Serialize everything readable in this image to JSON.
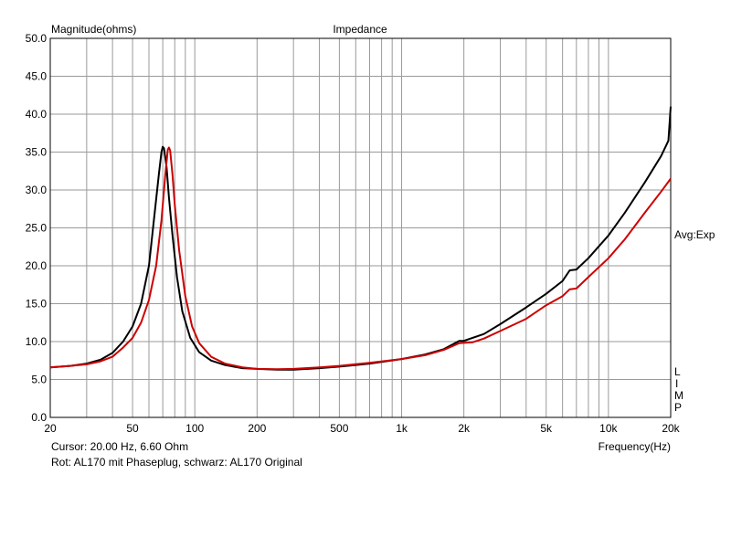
{
  "chart_data": {
    "type": "line",
    "title": "Impedance",
    "ylabel": "Magnitude(ohms)",
    "xlabel": "Frequency(Hz)",
    "x_scale": "log",
    "xlim": [
      20,
      20000
    ],
    "ylim": [
      0,
      50
    ],
    "grid": true,
    "x_ticks": [
      20,
      50,
      100,
      200,
      500,
      1000,
      2000,
      5000,
      10000,
      20000
    ],
    "x_tick_labels": [
      "20",
      "50",
      "100",
      "200",
      "500",
      "1k",
      "2k",
      "5k",
      "10k",
      "20k"
    ],
    "y_ticks": [
      0,
      5,
      10,
      15,
      20,
      25,
      30,
      35,
      40,
      45,
      50
    ],
    "y_tick_labels": [
      "0.0",
      "5.0",
      "10.0",
      "15.0",
      "20.0",
      "25.0",
      "30.0",
      "35.0",
      "40.0",
      "45.0",
      "50.0"
    ],
    "right_labels": {
      "avg": "Avg:Exp",
      "l": "L",
      "i": "I",
      "m": "M",
      "p": "P"
    },
    "series": [
      {
        "color": "#000000",
        "points": [
          [
            20,
            6.6
          ],
          [
            25,
            6.8
          ],
          [
            30,
            7.1
          ],
          [
            35,
            7.6
          ],
          [
            40,
            8.5
          ],
          [
            45,
            10.0
          ],
          [
            50,
            12.0
          ],
          [
            55,
            15.0
          ],
          [
            60,
            20.0
          ],
          [
            64,
            27.0
          ],
          [
            67,
            32.0
          ],
          [
            69,
            35.0
          ],
          [
            70,
            35.7
          ],
          [
            71,
            35.5
          ],
          [
            73,
            33.0
          ],
          [
            75,
            29.0
          ],
          [
            78,
            24.0
          ],
          [
            82,
            18.5
          ],
          [
            87,
            14.0
          ],
          [
            95,
            10.5
          ],
          [
            105,
            8.6
          ],
          [
            120,
            7.5
          ],
          [
            140,
            6.9
          ],
          [
            170,
            6.5
          ],
          [
            200,
            6.4
          ],
          [
            250,
            6.3
          ],
          [
            300,
            6.3
          ],
          [
            400,
            6.5
          ],
          [
            500,
            6.7
          ],
          [
            700,
            7.1
          ],
          [
            1000,
            7.7
          ],
          [
            1300,
            8.3
          ],
          [
            1600,
            9.0
          ],
          [
            1900,
            10.1
          ],
          [
            2000,
            10.1
          ],
          [
            2500,
            11.0
          ],
          [
            3000,
            12.3
          ],
          [
            4000,
            14.5
          ],
          [
            5000,
            16.3
          ],
          [
            6000,
            18.0
          ],
          [
            6500,
            19.4
          ],
          [
            7000,
            19.5
          ],
          [
            8000,
            21.0
          ],
          [
            10000,
            24.0
          ],
          [
            12000,
            27.0
          ],
          [
            15000,
            31.0
          ],
          [
            18000,
            34.5
          ],
          [
            19500,
            36.5
          ],
          [
            20000,
            41.0
          ]
        ]
      },
      {
        "color": "#cc0000",
        "points": [
          [
            20,
            6.6
          ],
          [
            25,
            6.8
          ],
          [
            30,
            7.0
          ],
          [
            35,
            7.4
          ],
          [
            40,
            8.0
          ],
          [
            45,
            9.2
          ],
          [
            50,
            10.5
          ],
          [
            55,
            12.5
          ],
          [
            60,
            15.5
          ],
          [
            65,
            20.0
          ],
          [
            69,
            26.0
          ],
          [
            72,
            32.0
          ],
          [
            74,
            35.3
          ],
          [
            75,
            35.6
          ],
          [
            76,
            35.2
          ],
          [
            78,
            32.0
          ],
          [
            80,
            28.0
          ],
          [
            84,
            22.0
          ],
          [
            90,
            16.0
          ],
          [
            97,
            12.0
          ],
          [
            105,
            9.8
          ],
          [
            120,
            8.0
          ],
          [
            140,
            7.1
          ],
          [
            170,
            6.6
          ],
          [
            200,
            6.4
          ],
          [
            250,
            6.35
          ],
          [
            300,
            6.4
          ],
          [
            400,
            6.6
          ],
          [
            500,
            6.8
          ],
          [
            700,
            7.2
          ],
          [
            1000,
            7.7
          ],
          [
            1300,
            8.2
          ],
          [
            1600,
            8.9
          ],
          [
            1900,
            9.8
          ],
          [
            2200,
            9.9
          ],
          [
            2500,
            10.4
          ],
          [
            3000,
            11.4
          ],
          [
            4000,
            13.0
          ],
          [
            5000,
            14.8
          ],
          [
            6000,
            16.0
          ],
          [
            6500,
            16.9
          ],
          [
            7000,
            17.0
          ],
          [
            8000,
            18.5
          ],
          [
            10000,
            21.0
          ],
          [
            12000,
            23.5
          ],
          [
            15000,
            27.0
          ],
          [
            18000,
            29.8
          ],
          [
            20000,
            31.5
          ]
        ]
      }
    ]
  },
  "footer": {
    "cursor": "Cursor: 20.00 Hz, 6.60 Ohm",
    "legend": "Rot: AL170 mit Phaseplug, schwarz: AL170 Original"
  }
}
